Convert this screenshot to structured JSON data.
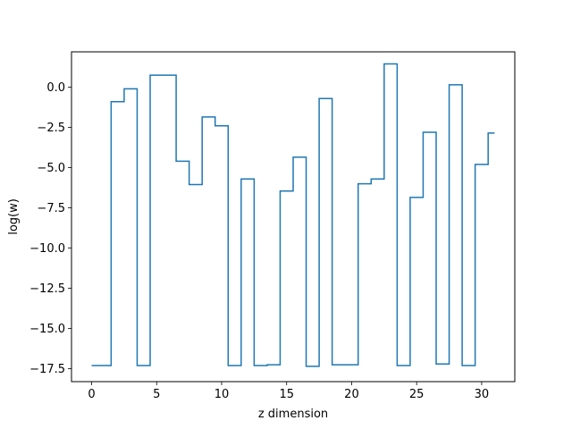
{
  "chart_data": {
    "type": "line",
    "drawstyle": "steps-mid",
    "title": "",
    "xlabel": "z dimension",
    "ylabel": "log(w)",
    "xlim": [
      -1.55,
      32.55
    ],
    "ylim": [
      -18.3,
      2.2
    ],
    "xticks": [
      0,
      5,
      10,
      15,
      20,
      25,
      30
    ],
    "xtick_labels": [
      "0",
      "5",
      "10",
      "15",
      "20",
      "25",
      "30"
    ],
    "yticks": [
      0.0,
      -2.5,
      -5.0,
      -7.5,
      -10.0,
      -12.5,
      -15.0,
      -17.5
    ],
    "ytick_labels": [
      "0.0",
      "−2.5",
      "−5.0",
      "−7.5",
      "−10.0",
      "−12.5",
      "−15.0",
      "−17.5"
    ],
    "grid": false,
    "series": [
      {
        "color": "#1f77b4",
        "x": [
          0,
          1,
          2,
          3,
          4,
          5,
          6,
          7,
          8,
          9,
          10,
          11,
          12,
          13,
          14,
          15,
          16,
          17,
          18,
          19,
          20,
          21,
          22,
          23,
          24,
          25,
          26,
          27,
          28,
          29,
          30,
          31
        ],
        "values": [
          -17.3,
          -17.3,
          -0.9,
          -0.1,
          -17.3,
          0.75,
          0.75,
          -4.6,
          -6.05,
          -1.85,
          -2.4,
          -17.3,
          -5.7,
          -17.3,
          -17.25,
          -6.45,
          -4.35,
          -17.35,
          -0.7,
          -17.25,
          -17.25,
          -6.0,
          -5.7,
          1.45,
          -17.3,
          -6.85,
          -2.8,
          -17.2,
          0.15,
          -17.3,
          -4.8,
          -2.85
        ]
      }
    ]
  }
}
